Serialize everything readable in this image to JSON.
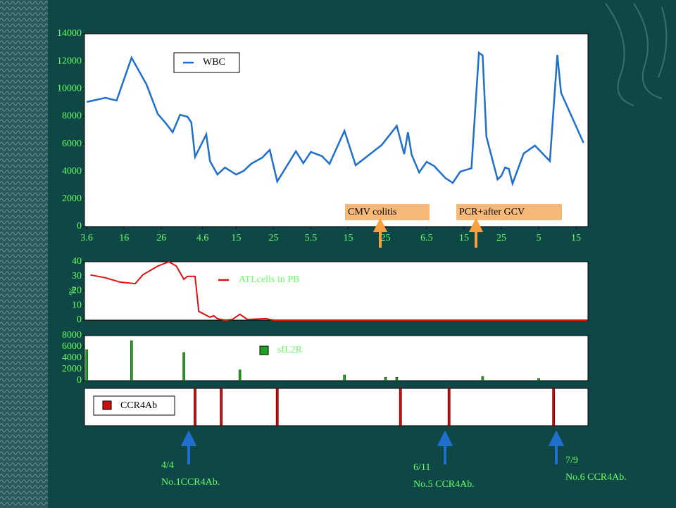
{
  "chart_data": [
    {
      "type": "line",
      "xlim": [
        -0.6,
        134.2
      ],
      "xticks": [
        {
          "value": 0,
          "label": "3.6"
        },
        {
          "value": 10,
          "label": "16"
        },
        {
          "value": 20,
          "label": "26"
        },
        {
          "value": 31,
          "label": "4.6"
        },
        {
          "value": 40,
          "label": "15"
        },
        {
          "value": 50,
          "label": "25"
        },
        {
          "value": 60,
          "label": "5.5"
        },
        {
          "value": 70,
          "label": "15"
        },
        {
          "value": 80,
          "label": "25"
        },
        {
          "value": 91,
          "label": "6.5"
        },
        {
          "value": 101,
          "label": "15"
        },
        {
          "value": 111,
          "label": "25"
        },
        {
          "value": 121,
          "label": "5"
        },
        {
          "value": 131,
          "label": "15"
        }
      ],
      "ylim": [
        0,
        14000
      ],
      "yticks": [
        0,
        2000,
        4000,
        6000,
        8000,
        10000,
        12000,
        14000
      ],
      "x": [
        0,
        5,
        8,
        12,
        16,
        19,
        21,
        23,
        25,
        27,
        28,
        29,
        32,
        33,
        35,
        37,
        40,
        42,
        44,
        47,
        49,
        51,
        56,
        58,
        60,
        63,
        65,
        69,
        72,
        79,
        83,
        85,
        86,
        87,
        89,
        91,
        93,
        96,
        98,
        100,
        103,
        105,
        106,
        107,
        110,
        111,
        112,
        113,
        114,
        117,
        120,
        124,
        126,
        127,
        133
      ],
      "series": [
        {
          "name": "WBC",
          "color": "#1f6fcf",
          "values": [
            9050,
            9350,
            9150,
            12260,
            10320,
            8180,
            7560,
            6850,
            8120,
            7970,
            7560,
            5060,
            6690,
            4750,
            3780,
            4290,
            3780,
            4040,
            4550,
            5010,
            5570,
            3270,
            5470,
            4600,
            5420,
            5110,
            4550,
            6950,
            4450,
            5930,
            7310,
            5260,
            6850,
            5210,
            3930,
            4700,
            4400,
            3530,
            3170,
            3990,
            4240,
            12620,
            12420,
            6540,
            3420,
            3680,
            4290,
            4190,
            3120,
            5310,
            5880,
            4750,
            12470,
            9710,
            6080
          ]
        }
      ],
      "annotations": [
        "CMV colitis",
        "PCR+after GCV"
      ]
    },
    {
      "type": "line",
      "xlim": [
        -0.6,
        134.2
      ],
      "ylabel": "%",
      "ylim": [
        0,
        40
      ],
      "yticks": [
        0,
        10,
        20,
        30,
        40
      ],
      "x": [
        1,
        5,
        9,
        13,
        15,
        19,
        22,
        24,
        26,
        27,
        29,
        30,
        33,
        34,
        35,
        37,
        39,
        41,
        43,
        48,
        50,
        134
      ],
      "series": [
        {
          "name": "ATLcells in PB",
          "color": "#e01010",
          "values": [
            31,
            29,
            26,
            25,
            31,
            37,
            40,
            37,
            28,
            30,
            30,
            6,
            2,
            3,
            1,
            0,
            0.5,
            4,
            0.5,
            1,
            0,
            0
          ]
        }
      ]
    },
    {
      "type": "bar",
      "xlim": [
        -0.6,
        134.2
      ],
      "ylim": [
        0,
        8000
      ],
      "yticks": [
        0,
        2000,
        4000,
        6000,
        8000
      ],
      "x": [
        0,
        12,
        26,
        41,
        69,
        80,
        83,
        106,
        121
      ],
      "series": [
        {
          "name": "sIL2R",
          "color": "#22a022",
          "values": [
            5500,
            7100,
            5000,
            1900,
            1000,
            600,
            600,
            750,
            400
          ]
        }
      ]
    },
    {
      "type": "event",
      "xlim": [
        -0.6,
        134.2
      ],
      "series": [
        {
          "name": "CCR4Ab",
          "color": "#cc1010",
          "x": [
            29,
            36,
            51,
            84,
            97,
            125
          ]
        }
      ],
      "annotations": [
        {
          "date": "4/4",
          "text": "No.1CCR4Ab."
        },
        {
          "date": "6/11",
          "text": "No.5 CCR4Ab."
        },
        {
          "date": "7/9",
          "text": "No.6 CCR4Ab."
        }
      ]
    }
  ]
}
